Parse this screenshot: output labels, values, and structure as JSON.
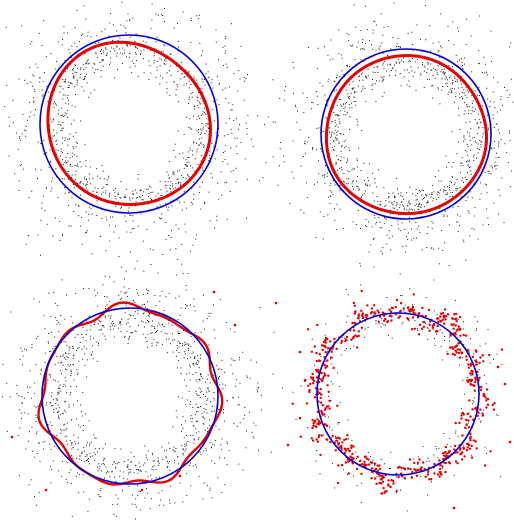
{
  "colors": {
    "background": "#ffffff",
    "noise": "#1a1a1a",
    "fitted_curve": "#e60000",
    "reference_circle": "#0000dd"
  },
  "panels": [
    {
      "id": "top-left",
      "curve_style": "smooth-closed-loop",
      "noise_style": "dense-annulus",
      "curve_fit": "shrunken-egg-shape-inside-circle",
      "outliers": "none"
    },
    {
      "id": "top-right",
      "curve_style": "smooth-closed-loop",
      "noise_style": "dense-annulus",
      "curve_fit": "near-circle-slightly-inside",
      "outliers": "none"
    },
    {
      "id": "bottom-left",
      "curve_style": "wavy-closed-loop",
      "noise_style": "dense-annulus",
      "curve_fit": "wavy-following-circle",
      "outliers": "few-sparse"
    },
    {
      "id": "bottom-right",
      "curve_style": "scattered-points-wavy",
      "noise_style": "sparse",
      "curve_fit": "strongly-wavy-spread",
      "outliers": "many"
    }
  ]
}
